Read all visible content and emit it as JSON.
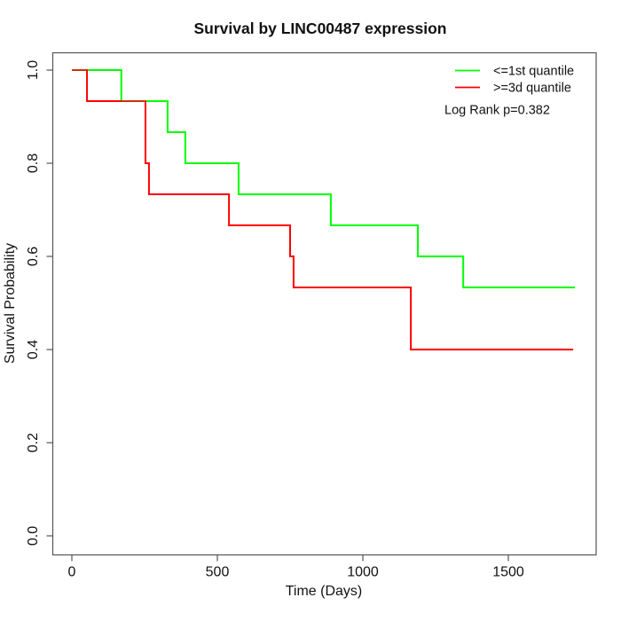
{
  "chart": {
    "title": "Survival by LINC00487 expression",
    "xlabel": "Time (Days)",
    "ylabel": "Survival Probability",
    "pvalue_text": "Log Rank p=0.382",
    "legend": [
      {
        "label": "<=1st quantile",
        "color": "#00ff00"
      },
      {
        "label": ">=3d quantile",
        "color": "#ff0000"
      }
    ]
  },
  "chart_data": {
    "type": "line",
    "subtype": "kaplan-meier-step",
    "title": "Survival by LINC00487 expression",
    "xlabel": "Time (Days)",
    "ylabel": "Survival Probability",
    "xlim": [
      0,
      1733
    ],
    "ylim": [
      0,
      1
    ],
    "x_ticks": [
      0,
      500,
      1000,
      1500
    ],
    "y_ticks": [
      0.0,
      0.2,
      0.4,
      0.6,
      0.8,
      1.0
    ],
    "grid": false,
    "legend_position": "top-right",
    "annotation": "Log Rank p=0.382",
    "series": [
      {
        "name": "<=1st quantile",
        "color": "#00ff00",
        "points": [
          [
            0,
            1.0
          ],
          [
            170,
            0.9333
          ],
          [
            329,
            0.8667
          ],
          [
            390,
            0.8
          ],
          [
            573,
            0.7333
          ],
          [
            890,
            0.6667
          ],
          [
            1189,
            0.6
          ],
          [
            1345,
            0.5333
          ]
        ],
        "end_time": 1729
      },
      {
        "name": ">=3d quantile",
        "color": "#ff0000",
        "points": [
          [
            0,
            1.0
          ],
          [
            52,
            0.9333
          ],
          [
            253,
            0.8
          ],
          [
            265,
            0.7333
          ],
          [
            540,
            0.6667
          ],
          [
            750,
            0.6
          ],
          [
            762,
            0.5333
          ],
          [
            1165,
            0.4
          ]
        ],
        "end_time": 1723
      }
    ],
    "overlap_segments": [
      {
        "level": 1.0,
        "from": 0,
        "to": 52
      },
      {
        "level": 0.9333,
        "from": 170,
        "to": 253
      }
    ],
    "overlap_color": "#cc3300",
    "axis_color": "#555555"
  }
}
